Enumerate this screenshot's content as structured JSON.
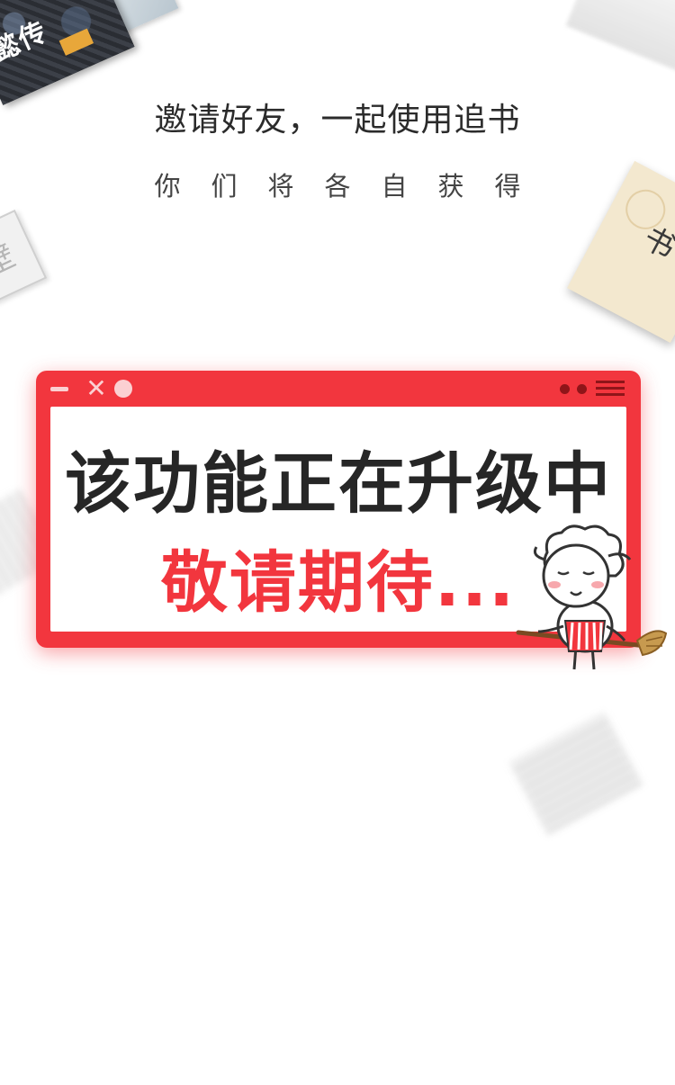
{
  "page": {
    "headline": "邀请好友，一起使用追书",
    "subline": "你们将各自获得"
  },
  "decor": {
    "book_top_left_title": "懿传",
    "book_left_glyph": "壁",
    "book_right_ink": "书"
  },
  "notice_window": {
    "title_controls": {
      "minimize": "—",
      "close": "✕",
      "maximize": "●"
    },
    "main_message": "该功能正在升级中",
    "sub_message": "敬请期待...",
    "accent_color": "#f2363e"
  },
  "mascot": {
    "icon": "sheep-sweeping-icon"
  }
}
